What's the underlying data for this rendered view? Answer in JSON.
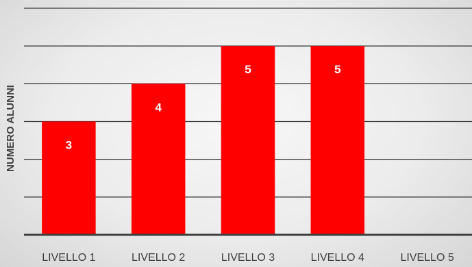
{
  "chart_data": {
    "type": "bar",
    "title": "",
    "xlabel": "",
    "ylabel": "NUMERO ALUNNI",
    "categories": [
      "LIVELLO 1",
      "LIVELLO 2",
      "LIVELLO 3",
      "LIVELLO 4",
      "LIVELLO 5"
    ],
    "values": [
      3,
      4,
      5,
      5,
      0
    ],
    "data_labels": [
      "3",
      "4",
      "5",
      "5",
      ""
    ],
    "ylim": [
      0,
      6
    ],
    "y_ticks_shown": false,
    "grid": true,
    "legend": "none",
    "colors": {
      "bar": "#ff0000",
      "grid": "#3a3a3a",
      "axis": "#404040",
      "text": "#404040",
      "data_label": "#ffffff"
    }
  }
}
